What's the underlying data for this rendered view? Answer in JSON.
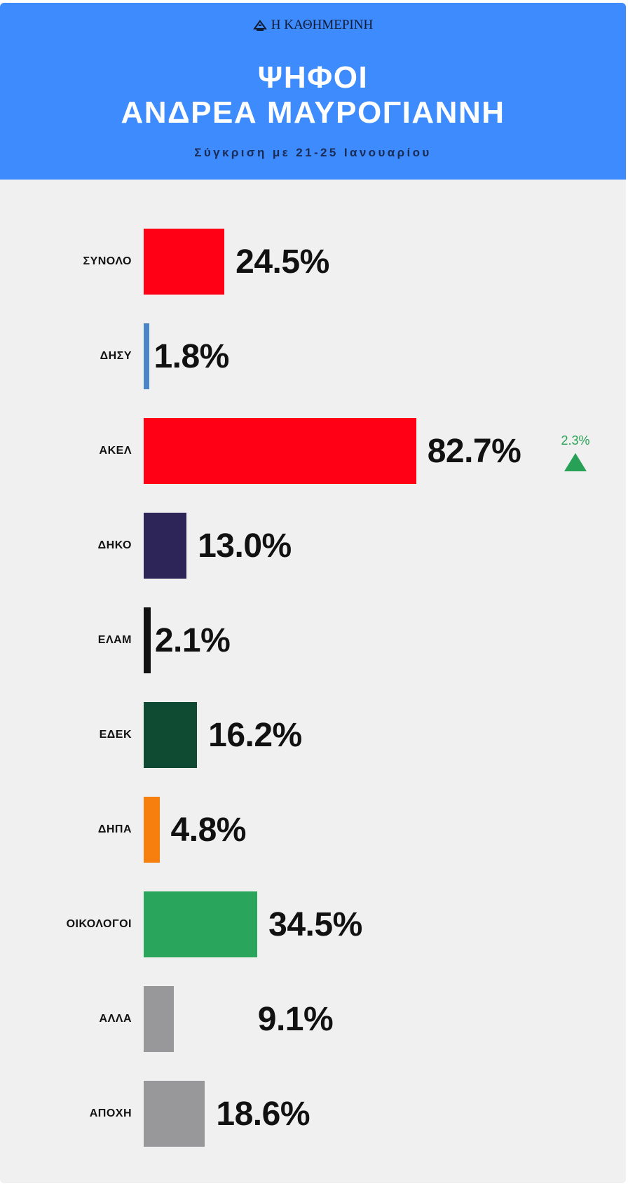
{
  "header": {
    "logo_text": "Η ΚΑΘΗΜΕΡΙΝΗ",
    "title_line1": "ΨΗΦΟΙ",
    "title_line2": "ΑΝΔΡΕΑ ΜΑΥΡΟΓΙΑΝΝΗ",
    "subtitle": "Σύγκριση με 21-25 Ιανουαρίου"
  },
  "colors": {
    "header_bg": "#3d8bfd",
    "panel_bg": "#f0f0f0",
    "increase": "#27a155"
  },
  "chart_data": {
    "type": "bar",
    "orientation": "horizontal",
    "xlim": [
      0,
      100
    ],
    "categories": [
      "ΣΥΝΟΛΟ",
      "ΔΗΣΥ",
      "ΑΚΕΛ",
      "ΔΗΚΟ",
      "ΕΛΑΜ",
      "ΕΔΕΚ",
      "ΔΗΠΑ",
      "ΟΙΚΟΛΟΓΟΙ",
      "ΑΛΛΑ",
      "ΑΠΟΧΗ"
    ],
    "values": [
      24.5,
      1.8,
      82.7,
      13.0,
      2.1,
      16.2,
      4.8,
      34.5,
      9.1,
      18.6
    ],
    "value_labels": [
      "24.5%",
      "1.8%",
      "82.7%",
      "13.0%",
      "2.1%",
      "16.2%",
      "4.8%",
      "34.5%",
      "9.1%",
      "18.6%"
    ],
    "bar_colors": [
      "#ff0015",
      "#4a86c5",
      "#ff0015",
      "#2d2557",
      "#111111",
      "#0f4a33",
      "#f77f0d",
      "#29a65b",
      "#98989a",
      "#98989a"
    ],
    "changes": [
      null,
      null,
      {
        "label": "2.3%",
        "direction": "up"
      },
      null,
      null,
      null,
      null,
      null,
      null,
      null
    ],
    "title": "ΨΗΦΟΙ ΑΝΔΡΕΑ ΜΑΥΡΟΓΙΑΝΝΗ",
    "subtitle": "Σύγκριση με 21-25 Ιανουαρίου",
    "grid": false,
    "legend": "none"
  }
}
